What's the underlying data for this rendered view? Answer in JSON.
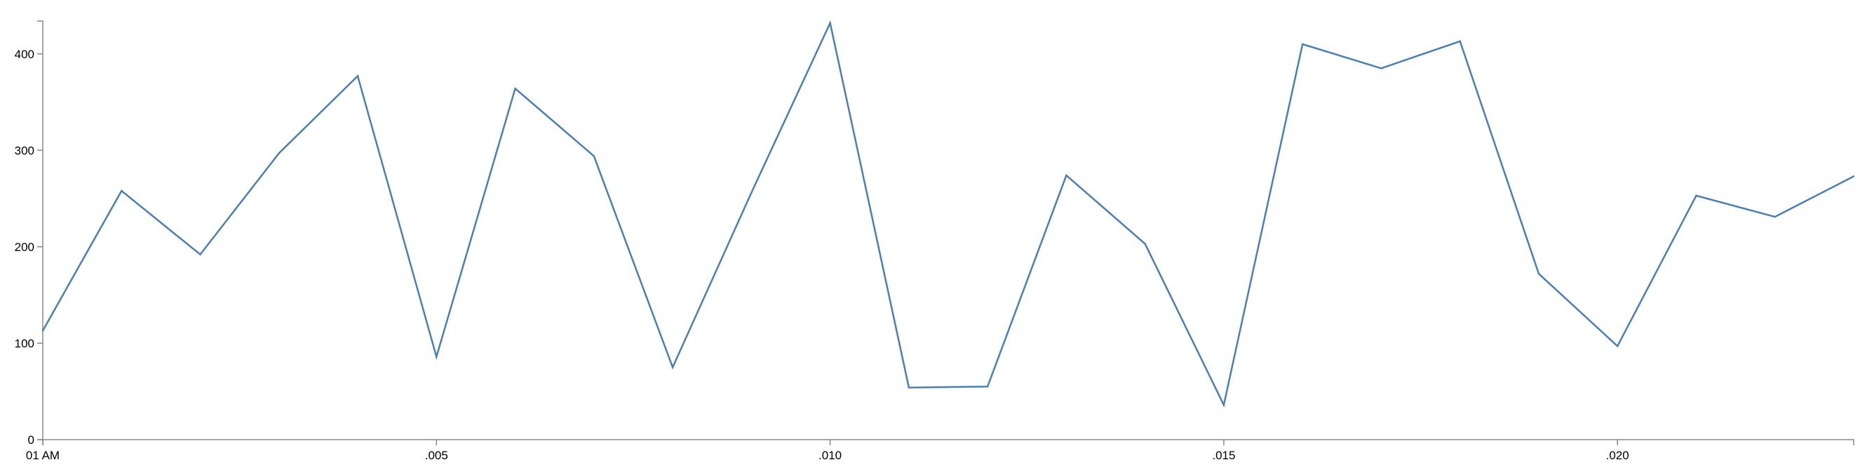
{
  "chart_data": {
    "type": "line",
    "title": "",
    "xlabel": "",
    "ylabel": "",
    "x": [
      0,
      1,
      2,
      3,
      4,
      5,
      6,
      7,
      8,
      9,
      10,
      11,
      12,
      13,
      14,
      15,
      16,
      17,
      18,
      19,
      20,
      21,
      22,
      23
    ],
    "series": [
      {
        "values": [
          113,
          258,
          192,
          297,
          377,
          86,
          364,
          294,
          75,
          256,
          432,
          54,
          55,
          274,
          203,
          36,
          410,
          385,
          413,
          172,
          97,
          253,
          231,
          273
        ],
        "color": "#4a7fb4"
      }
    ],
    "x_ticks": [
      {
        "x": 0,
        "label": "01 AM"
      },
      {
        "x": 5,
        "label": ".005"
      },
      {
        "x": 10,
        "label": ".010"
      },
      {
        "x": 15,
        "label": ".015"
      },
      {
        "x": 20,
        "label": ".020"
      }
    ],
    "y_ticks": [
      {
        "y": 0,
        "label": "0"
      },
      {
        "y": 100,
        "label": "100"
      },
      {
        "y": 200,
        "label": "200"
      },
      {
        "y": 300,
        "label": "300"
      },
      {
        "y": 400,
        "label": "400"
      }
    ],
    "xlim": [
      0,
      23
    ],
    "ylim": [
      0,
      434
    ],
    "grid": false,
    "legend": "none"
  }
}
